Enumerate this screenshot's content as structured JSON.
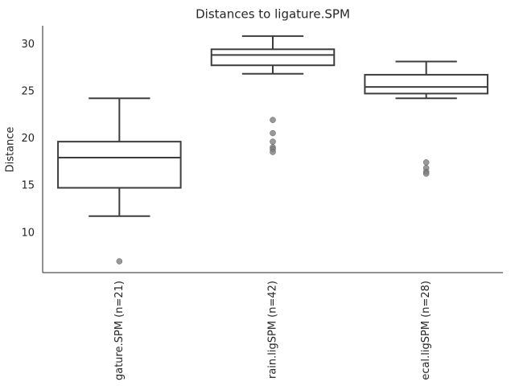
{
  "chart_data": {
    "type": "box",
    "title": "Distances to ligature.SPM",
    "ylabel": "Distance",
    "categories": [
      "gature.SPM (n=21)",
      "rain.ligSPM (n=42)",
      "ecal.ligSPM (n=28)"
    ],
    "boxes": [
      {
        "whislo": 11.8,
        "q1": 14.8,
        "med": 18.0,
        "q3": 19.7,
        "whishi": 24.3,
        "fliers": [
          7.0
        ]
      },
      {
        "whislo": 26.9,
        "q1": 27.8,
        "med": 28.9,
        "q3": 29.5,
        "whishi": 30.9,
        "fliers": [
          22.0,
          20.6,
          19.7,
          19.1,
          18.9,
          18.6
        ]
      },
      {
        "whislo": 24.3,
        "q1": 24.8,
        "med": 25.5,
        "q3": 26.8,
        "whishi": 28.2,
        "fliers": [
          17.5,
          16.9,
          16.5,
          16.3
        ]
      }
    ],
    "color": "#3d3d3d",
    "flier_color": "#7f7f7f",
    "ylim": [
      5.8,
      32.0
    ],
    "yticks": [
      10,
      15,
      20,
      25,
      30
    ],
    "grid": false
  }
}
